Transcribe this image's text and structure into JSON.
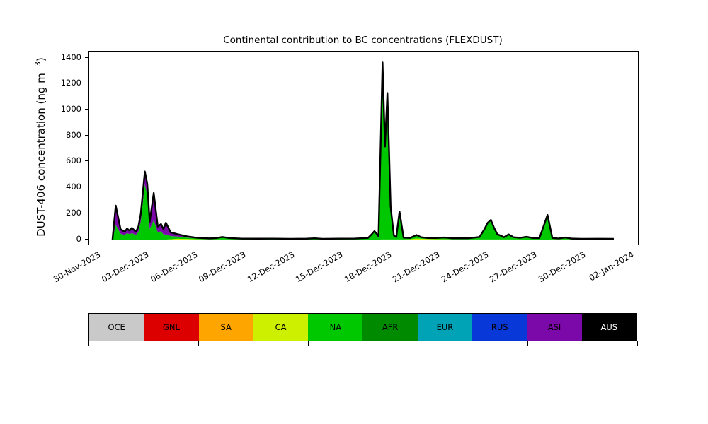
{
  "chart_data": {
    "type": "area",
    "stacked": true,
    "title": "Continental contribution to BC concentrations (FLEXDUST)",
    "ylabel": {
      "text": "DUST-406 concentration (ng m",
      "sup": "−3",
      "suffix": ")"
    },
    "x_axis": {
      "xlim": [
        -0.44,
        33.49
      ],
      "unit": "days since 30-Nov-2023",
      "tick_days": [
        0,
        3,
        6,
        9,
        12,
        15,
        18,
        21,
        24,
        27,
        30,
        33
      ],
      "tick_labels": [
        "30-Nov-2023",
        "03-Dec-2023",
        "06-Dec-2023",
        "09-Dec-2023",
        "12-Dec-2023",
        "15-Dec-2023",
        "18-Dec-2023",
        "21-Dec-2023",
        "24-Dec-2023",
        "27-Dec-2023",
        "30-Dec-2023",
        "02-Jan-2024"
      ]
    },
    "y_axis": {
      "ticks": [
        0,
        200,
        400,
        600,
        800,
        1000,
        1200,
        1400
      ],
      "ylim": [
        -38,
        1450
      ]
    },
    "grid": false,
    "legend_position": "bottom",
    "outline": {
      "color": "#000000",
      "width": 2.4,
      "meaning": "total concentration"
    },
    "series": [
      {
        "name": "OCE",
        "color": "#c9c9c9",
        "label_color": "#000000",
        "points": [
          [
            1,
            0
          ],
          [
            32,
            0
          ]
        ]
      },
      {
        "name": "GNL",
        "color": "#dd0000",
        "label_color": "#000000",
        "points": [
          [
            1,
            0
          ],
          [
            32,
            0
          ]
        ]
      },
      {
        "name": "SA",
        "color": "#ffa500",
        "label_color": "#000000",
        "points": [
          [
            1,
            0
          ],
          [
            32,
            0
          ]
        ]
      },
      {
        "name": "CA",
        "color": "#ccf000",
        "label_color": "#000000",
        "points": [
          [
            1,
            0
          ],
          [
            4.3,
            0
          ],
          [
            4.6,
            2
          ],
          [
            5,
            6
          ],
          [
            5.6,
            5
          ],
          [
            6.2,
            2
          ],
          [
            7,
            1
          ],
          [
            8,
            1
          ],
          [
            10,
            0
          ],
          [
            16,
            0
          ],
          [
            19,
            1
          ],
          [
            19.4,
            2
          ],
          [
            19.8,
            8
          ],
          [
            20.1,
            6
          ],
          [
            20.5,
            4
          ],
          [
            21,
            3
          ],
          [
            22,
            1
          ],
          [
            23,
            1
          ],
          [
            24,
            1
          ],
          [
            26,
            1
          ],
          [
            27,
            0
          ],
          [
            29,
            1
          ],
          [
            30,
            1
          ],
          [
            32,
            0
          ]
        ]
      },
      {
        "name": "NA",
        "color": "#00c800",
        "label_color": "#000000",
        "points": [
          [
            1,
            0
          ],
          [
            1.2,
            112
          ],
          [
            1.5,
            45
          ],
          [
            1.75,
            35
          ],
          [
            1.9,
            50
          ],
          [
            2.05,
            42
          ],
          [
            2.2,
            50
          ],
          [
            2.45,
            35
          ],
          [
            2.6,
            60
          ],
          [
            2.75,
            140
          ],
          [
            3,
            425
          ],
          [
            3.15,
            340
          ],
          [
            3.3,
            80
          ],
          [
            3.55,
            150
          ],
          [
            3.8,
            55
          ],
          [
            4,
            65
          ],
          [
            4.15,
            40
          ],
          [
            4.3,
            40
          ],
          [
            4.6,
            25
          ],
          [
            5,
            18
          ],
          [
            5.6,
            10
          ],
          [
            6.2,
            7
          ],
          [
            7,
            5
          ],
          [
            7.4,
            8
          ],
          [
            7.8,
            17
          ],
          [
            8.2,
            9
          ],
          [
            9,
            5
          ],
          [
            10,
            5
          ],
          [
            11,
            6
          ],
          [
            12,
            5
          ],
          [
            13,
            6
          ],
          [
            13.5,
            9
          ],
          [
            14,
            5
          ],
          [
            15,
            6
          ],
          [
            16,
            6
          ],
          [
            16.8,
            10
          ],
          [
            17.2,
            57
          ],
          [
            17.45,
            12
          ],
          [
            17.7,
            1345
          ],
          [
            17.85,
            700
          ],
          [
            18,
            1115
          ],
          [
            18.2,
            242
          ],
          [
            18.4,
            26
          ],
          [
            18.55,
            14
          ],
          [
            18.75,
            209
          ],
          [
            19,
            11
          ],
          [
            19.4,
            8
          ],
          [
            19.8,
            25
          ],
          [
            20.1,
            10
          ],
          [
            20.5,
            6
          ],
          [
            21,
            7
          ],
          [
            21.5,
            12
          ],
          [
            22,
            7
          ],
          [
            23,
            7
          ],
          [
            23.7,
            16
          ],
          [
            24,
            75
          ],
          [
            24.2,
            124
          ],
          [
            24.4,
            146
          ],
          [
            24.6,
            85
          ],
          [
            24.8,
            36
          ],
          [
            25,
            28
          ],
          [
            25.2,
            15
          ],
          [
            25.5,
            37
          ],
          [
            25.8,
            15
          ],
          [
            26.2,
            11
          ],
          [
            26.6,
            19
          ],
          [
            27,
            10
          ],
          [
            27.4,
            8
          ],
          [
            27.9,
            185
          ],
          [
            28.2,
            8
          ],
          [
            28.6,
            6
          ],
          [
            29,
            13
          ],
          [
            29.4,
            5
          ],
          [
            30,
            4
          ],
          [
            31,
            5
          ],
          [
            32,
            5
          ]
        ]
      },
      {
        "name": "AFR",
        "color": "#008a00",
        "label_color": "#000000",
        "points": [
          [
            1,
            0
          ],
          [
            32,
            0
          ]
        ]
      },
      {
        "name": "EUR",
        "color": "#00a2b5",
        "label_color": "#000000",
        "points": [
          [
            1,
            0
          ],
          [
            32,
            0
          ]
        ]
      },
      {
        "name": "RUS",
        "color": "#0838d8",
        "label_color": "#000000",
        "points": [
          [
            1,
            0
          ],
          [
            32,
            0
          ]
        ]
      },
      {
        "name": "ASI",
        "color": "#7b08a8",
        "label_color": "#000000",
        "points": [
          [
            1,
            0
          ],
          [
            1.2,
            150
          ],
          [
            1.5,
            35
          ],
          [
            1.75,
            25
          ],
          [
            1.9,
            35
          ],
          [
            2.05,
            28
          ],
          [
            2.2,
            40
          ],
          [
            2.45,
            25
          ],
          [
            2.6,
            40
          ],
          [
            2.75,
            60
          ],
          [
            3,
            100
          ],
          [
            3.15,
            90
          ],
          [
            3.3,
            55
          ],
          [
            3.55,
            210
          ],
          [
            3.8,
            45
          ],
          [
            4,
            55
          ],
          [
            4.15,
            40
          ],
          [
            4.3,
            90
          ],
          [
            4.6,
            28
          ],
          [
            5,
            18
          ],
          [
            5.6,
            10
          ],
          [
            6.2,
            5
          ],
          [
            7,
            3
          ],
          [
            8,
            2
          ],
          [
            10,
            2
          ],
          [
            12,
            1
          ],
          [
            14,
            1
          ],
          [
            16,
            2
          ],
          [
            17,
            3
          ],
          [
            17.7,
            20
          ],
          [
            18,
            15
          ],
          [
            18.4,
            4
          ],
          [
            18.75,
            6
          ],
          [
            19,
            3
          ],
          [
            20,
            2
          ],
          [
            21,
            2
          ],
          [
            22,
            2
          ],
          [
            23,
            2
          ],
          [
            24.4,
            5
          ],
          [
            25,
            2
          ],
          [
            26,
            2
          ],
          [
            27,
            2
          ],
          [
            27.9,
            5
          ],
          [
            28.5,
            2
          ],
          [
            29,
            2
          ],
          [
            30,
            1
          ],
          [
            31,
            1
          ],
          [
            32,
            1
          ]
        ]
      },
      {
        "name": "AUS",
        "color": "#000000",
        "label_color": "#ffffff",
        "points": [
          [
            1,
            0
          ],
          [
            32,
            0
          ]
        ]
      }
    ]
  }
}
